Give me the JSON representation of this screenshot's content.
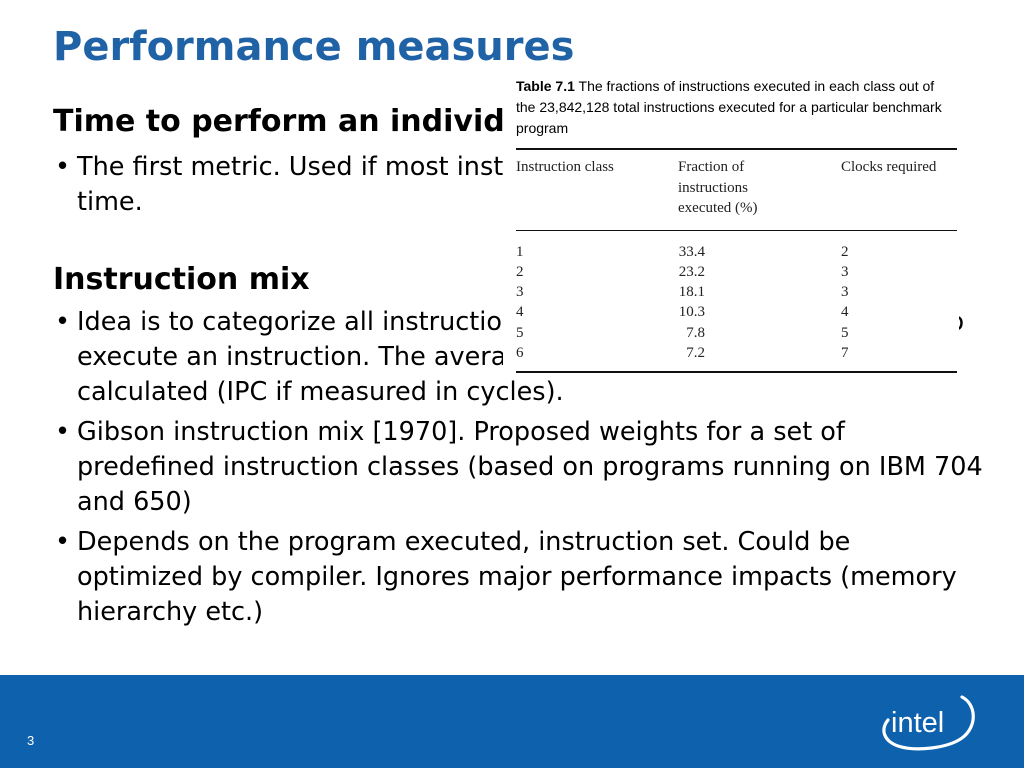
{
  "slide": {
    "title": "Performance measures",
    "page_number": "3"
  },
  "sections": [
    {
      "heading": "Time to perform an individual operation",
      "bullets": [
        "The first metric. Used if most instructions take the same execution time."
      ]
    },
    {
      "heading": "Instruction mix",
      "bullets": [
        "Idea is to categorize all instructions into classes by cycles required to execute an instruction. The average instruction execution time is calculated (IPC if measured in cycles).",
        "Gibson instruction mix [1970]. Proposed weights for a set of predefined instruction classes (based on programs running on IBM 704 and 650)",
        "Depends on the program executed, instruction set. Could be optimized by compiler. Ignores major performance impacts (memory hierarchy etc.)"
      ]
    }
  ],
  "table_figure": {
    "caption_label": "Table 7.1",
    "caption_text": " The fractions of instructions executed in each class out of the 23,842,128 total instructions executed for a particular benchmark program",
    "headers": [
      "Instruction class",
      "Fraction of instructions executed (%)",
      "Clocks required"
    ],
    "rows": [
      {
        "instruction_class": "1",
        "fraction": "33.4",
        "clocks": "2"
      },
      {
        "instruction_class": "2",
        "fraction": "23.2",
        "clocks": "3"
      },
      {
        "instruction_class": "3",
        "fraction": "18.1",
        "clocks": "3"
      },
      {
        "instruction_class": "4",
        "fraction": "10.3",
        "clocks": "4"
      },
      {
        "instruction_class": "5",
        "fraction": "7.8",
        "clocks": "5"
      },
      {
        "instruction_class": "6",
        "fraction": "7.2",
        "clocks": "7"
      }
    ]
  },
  "footer": {
    "logo_text": "intel",
    "bar_color": "#0d61ad"
  },
  "colors": {
    "title": "#1f62a6",
    "footer_bar": "#0d61ad",
    "text": "#000000"
  }
}
